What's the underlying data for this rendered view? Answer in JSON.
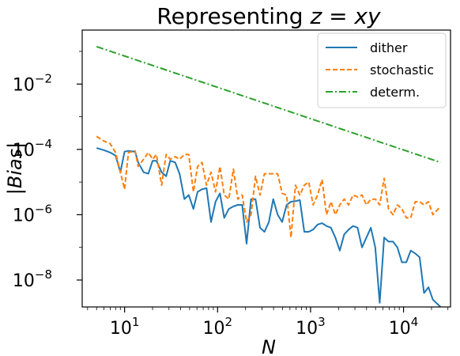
{
  "chart_data": {
    "type": "line",
    "title_prefix": "Representing ",
    "title_math": "z = xy",
    "xlabel": "N",
    "ylabel": "|Bias|",
    "xscale": "log",
    "yscale": "log",
    "xlim": [
      3.5,
      32000
    ],
    "ylim": [
      1.5e-09,
      0.45
    ],
    "x_ticks": [
      {
        "base": "10",
        "exp": "1",
        "value": 10
      },
      {
        "base": "10",
        "exp": "2",
        "value": 100
      },
      {
        "base": "10",
        "exp": "3",
        "value": 1000
      },
      {
        "base": "10",
        "exp": "4",
        "value": 10000
      }
    ],
    "y_ticks": [
      {
        "base": "10",
        "exp": "−2",
        "value": 0.01
      },
      {
        "base": "10",
        "exp": "−4",
        "value": 0.0001
      },
      {
        "base": "10",
        "exp": "−6",
        "value": 1e-06
      },
      {
        "base": "10",
        "exp": "−8",
        "value": 1e-08
      }
    ],
    "legend_position": "top-right",
    "series": [
      {
        "name": "dither",
        "color": "#1f77b4",
        "style": "solid",
        "x": [
          5,
          6,
          7,
          8,
          9,
          10,
          11,
          13,
          14,
          16,
          18,
          20,
          22,
          25,
          28,
          31,
          35,
          39,
          44,
          49,
          55,
          61,
          68,
          76,
          85,
          95,
          106,
          118,
          132,
          148,
          165,
          184,
          205,
          229,
          256,
          286,
          319,
          356,
          397,
          443,
          495,
          552,
          616,
          688,
          768,
          857,
          956,
          1067,
          1191,
          1329,
          1483,
          1656,
          1848,
          2062,
          2302,
          2569,
          2867,
          3200,
          3571,
          3986,
          4448,
          4965,
          5541,
          6184,
          6902,
          7703,
          8597,
          9595,
          10709,
          11952,
          13339,
          14887,
          16615,
          18543,
          20695,
          25000
        ],
        "y": [
          0.00011,
          9.5e-05,
          8e-05,
          6.5e-05,
          2e-05,
          8.5e-05,
          9e-05,
          8.5e-05,
          4e-05,
          2e-05,
          1.8e-05,
          4.5e-05,
          4.5e-05,
          2e-05,
          1.5e-05,
          4.5e-05,
          4e-05,
          1.8e-05,
          3e-06,
          4e-06,
          1.5e-06,
          5e-06,
          6e-06,
          6.5e-06,
          6e-07,
          2.5e-06,
          4.5e-06,
          8e-07,
          1.5e-06,
          1.8e-06,
          2e-06,
          2e-06,
          1.3e-07,
          3e-06,
          3e-06,
          4e-07,
          3e-07,
          6e-07,
          3e-06,
          1e-06,
          6e-07,
          2e-06,
          2.5e-06,
          2.6e-06,
          2.8e-06,
          3e-07,
          3e-07,
          3.5e-07,
          5e-07,
          5.5e-07,
          4.5e-07,
          4e-07,
          2e-07,
          8e-08,
          2.5e-07,
          3.5e-07,
          4.5e-07,
          4e-07,
          1e-07,
          2e-07,
          4e-07,
          1e-07,
          2e-09,
          2e-07,
          1.5e-07,
          1.5e-07,
          1e-07,
          3.5e-08,
          3.5e-08,
          8e-08,
          6.5e-08,
          5e-08,
          4e-09,
          6e-09,
          2.5e-09,
          1.5e-09
        ]
      },
      {
        "name": "stochastic",
        "color": "#ff7f0e",
        "style": "dashed",
        "x": [
          5,
          6,
          7,
          8,
          9,
          10,
          11,
          13,
          14,
          16,
          18,
          20,
          22,
          25,
          28,
          31,
          35,
          39,
          44,
          49,
          55,
          61,
          68,
          76,
          85,
          95,
          106,
          118,
          132,
          148,
          165,
          184,
          205,
          229,
          256,
          286,
          319,
          356,
          397,
          443,
          495,
          552,
          616,
          688,
          768,
          857,
          956,
          1067,
          1191,
          1329,
          1483,
          1656,
          1848,
          2062,
          2302,
          2569,
          2867,
          3200,
          3571,
          3986,
          4448,
          4965,
          5541,
          6184,
          6902,
          7703,
          8597,
          9595,
          10709,
          11952,
          13339,
          14887,
          16615,
          18543,
          20695,
          25000
        ],
        "y": [
          0.00025,
          0.00018,
          0.00015,
          8e-05,
          2e-05,
          6e-06,
          8e-05,
          9e-05,
          3e-05,
          5e-05,
          8e-05,
          5e-05,
          7e-05,
          8e-06,
          7e-05,
          5e-05,
          6e-05,
          5e-05,
          7e-05,
          7e-05,
          5e-06,
          3e-05,
          4e-05,
          8e-06,
          2e-05,
          5e-06,
          3e-05,
          4e-06,
          3e-06,
          2.5e-05,
          3e-06,
          4e-06,
          6e-07,
          1e-06,
          1.5e-05,
          4e-06,
          1.8e-05,
          1.8e-05,
          1.8e-05,
          1.8e-05,
          4.5e-06,
          4e-06,
          2e-07,
          8e-06,
          4e-06,
          8e-06,
          1e-05,
          2e-06,
          4e-06,
          1.2e-05,
          1e-06,
          2.5e-06,
          1e-06,
          2e-06,
          3e-06,
          2e-06,
          4e-06,
          3.5e-06,
          4e-06,
          2e-06,
          3e-06,
          3e-06,
          2e-06,
          1.3e-05,
          1.5e-06,
          1e-06,
          2e-06,
          1.5e-06,
          8e-07,
          8e-07,
          2.5e-06,
          2.5e-06,
          2e-06,
          2.5e-06,
          1e-06,
          1.8e-06
        ]
      },
      {
        "name": "determ.",
        "color": "#2ca02c",
        "style": "dashdot",
        "x": [
          5,
          25000
        ],
        "y": [
          0.14,
          4e-05
        ]
      }
    ]
  }
}
